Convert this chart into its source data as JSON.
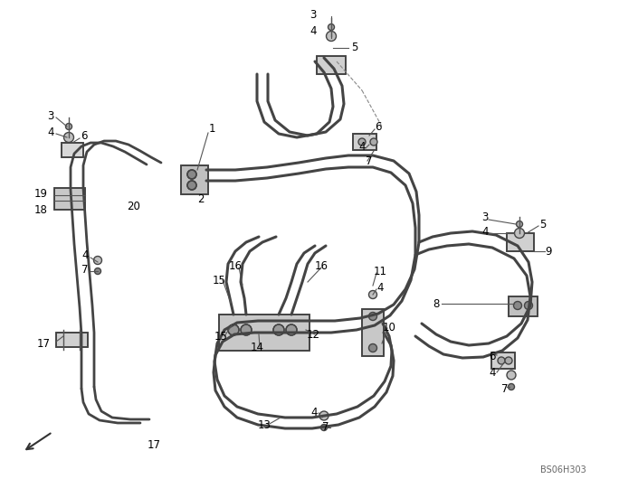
{
  "background_color": "#ffffff",
  "line_color": "#444444",
  "label_color": "#000000",
  "part_id": "BS06H303",
  "figsize": [
    6.84,
    5.3
  ],
  "dpi": 100
}
